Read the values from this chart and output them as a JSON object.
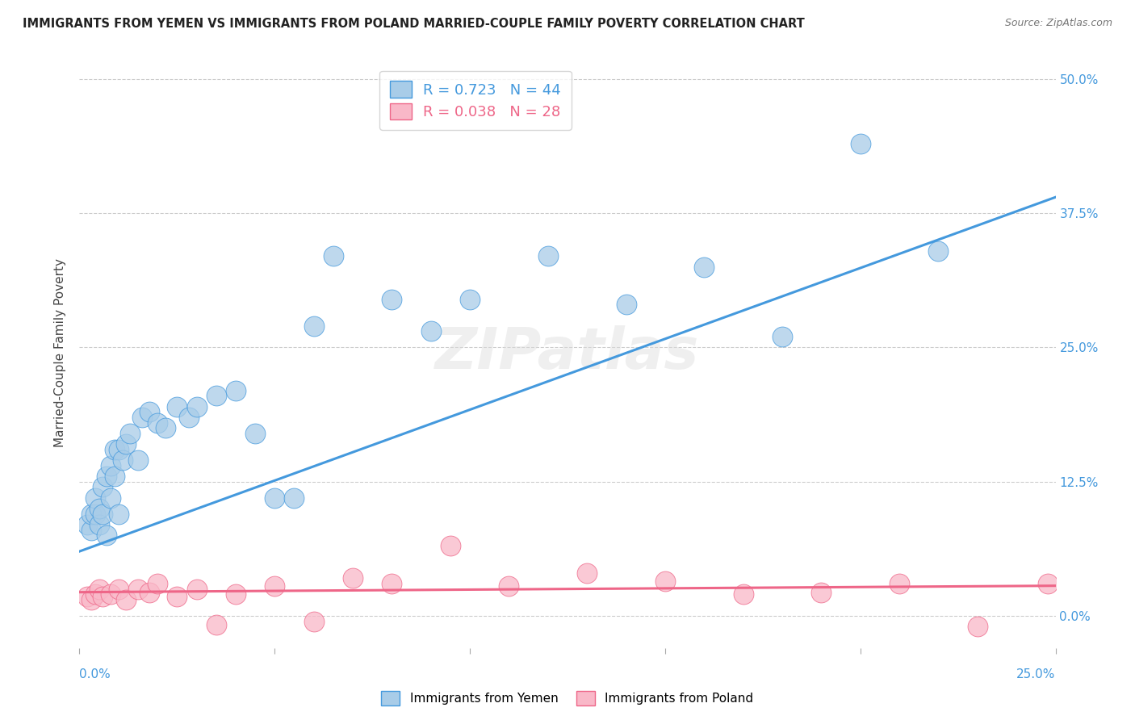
{
  "title": "IMMIGRANTS FROM YEMEN VS IMMIGRANTS FROM POLAND MARRIED-COUPLE FAMILY POVERTY CORRELATION CHART",
  "source": "Source: ZipAtlas.com",
  "ylabel": "Married-Couple Family Poverty",
  "xlim": [
    0.0,
    0.25
  ],
  "ylim": [
    -0.03,
    0.52
  ],
  "yemen_R": 0.723,
  "yemen_N": 44,
  "poland_R": 0.038,
  "poland_N": 28,
  "yemen_color": "#a8cce8",
  "poland_color": "#f9b8c8",
  "yemen_line_color": "#4499dd",
  "poland_line_color": "#ee6688",
  "background_color": "#ffffff",
  "watermark": "ZIPatlas",
  "yemen_line_x0": 0.0,
  "yemen_line_y0": 0.06,
  "yemen_line_x1": 0.25,
  "yemen_line_y1": 0.39,
  "poland_line_x0": 0.0,
  "poland_line_y0": 0.022,
  "poland_line_x1": 0.25,
  "poland_line_y1": 0.028,
  "ytick_vals": [
    0.0,
    0.125,
    0.25,
    0.375,
    0.5
  ],
  "xtick_vals": [
    0.0,
    0.05,
    0.1,
    0.15,
    0.2,
    0.25
  ],
  "yemen_x": [
    0.002,
    0.003,
    0.003,
    0.004,
    0.004,
    0.005,
    0.005,
    0.006,
    0.006,
    0.007,
    0.007,
    0.008,
    0.008,
    0.009,
    0.009,
    0.01,
    0.01,
    0.011,
    0.012,
    0.013,
    0.015,
    0.016,
    0.018,
    0.02,
    0.022,
    0.025,
    0.028,
    0.03,
    0.035,
    0.04,
    0.045,
    0.05,
    0.055,
    0.06,
    0.065,
    0.08,
    0.09,
    0.1,
    0.12,
    0.14,
    0.16,
    0.18,
    0.2,
    0.22
  ],
  "yemen_y": [
    0.085,
    0.08,
    0.095,
    0.095,
    0.11,
    0.085,
    0.1,
    0.12,
    0.095,
    0.13,
    0.075,
    0.14,
    0.11,
    0.13,
    0.155,
    0.095,
    0.155,
    0.145,
    0.16,
    0.17,
    0.145,
    0.185,
    0.19,
    0.18,
    0.175,
    0.195,
    0.185,
    0.195,
    0.205,
    0.21,
    0.17,
    0.11,
    0.11,
    0.27,
    0.335,
    0.295,
    0.265,
    0.295,
    0.335,
    0.29,
    0.325,
    0.26,
    0.44,
    0.34
  ],
  "poland_x": [
    0.002,
    0.003,
    0.004,
    0.005,
    0.006,
    0.008,
    0.01,
    0.012,
    0.015,
    0.018,
    0.02,
    0.025,
    0.03,
    0.035,
    0.04,
    0.05,
    0.06,
    0.07,
    0.08,
    0.095,
    0.11,
    0.13,
    0.15,
    0.17,
    0.19,
    0.21,
    0.23,
    0.248
  ],
  "poland_y": [
    0.018,
    0.015,
    0.02,
    0.025,
    0.018,
    0.02,
    0.025,
    0.015,
    0.025,
    0.022,
    0.03,
    0.018,
    0.025,
    -0.008,
    0.02,
    0.028,
    -0.005,
    0.035,
    0.03,
    0.065,
    0.028,
    0.04,
    0.032,
    0.02,
    0.022,
    0.03,
    -0.01,
    0.03
  ]
}
